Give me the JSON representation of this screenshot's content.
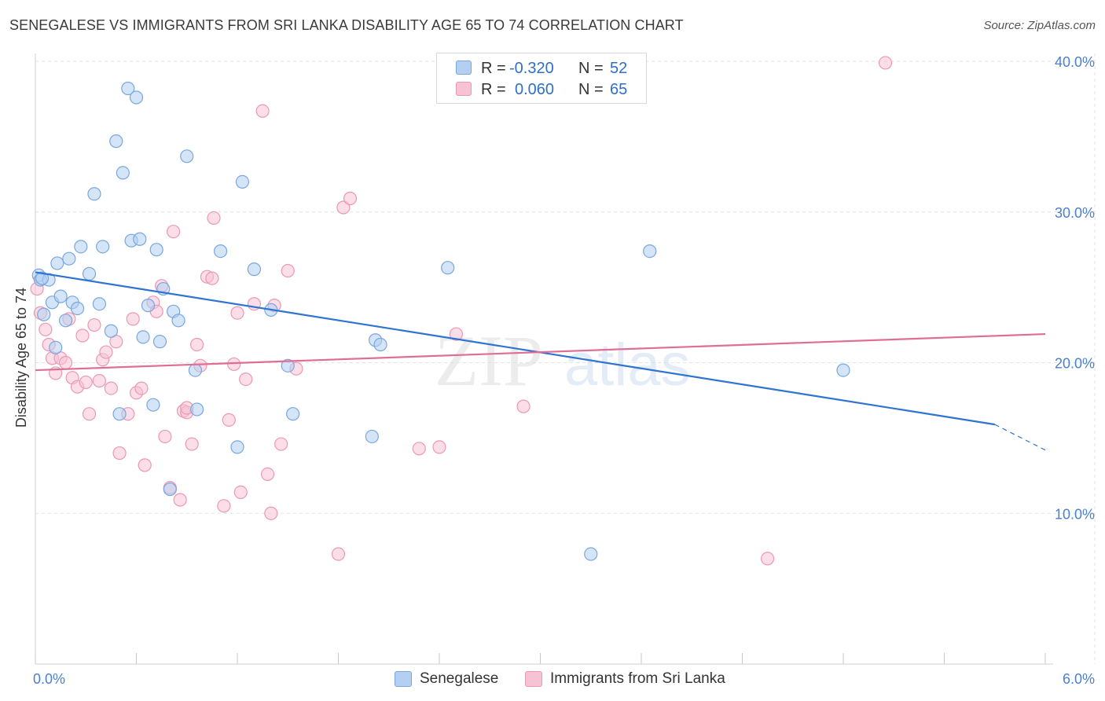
{
  "title": "SENEGALESE VS IMMIGRANTS FROM SRI LANKA DISABILITY AGE 65 TO 74 CORRELATION CHART",
  "source": "Source: ZipAtlas.com",
  "watermark": {
    "zip": "ZIP",
    "atlas": "atlas"
  },
  "legend": {
    "rows": [
      {
        "r_label": "R =",
        "r_value": "-0.320",
        "n_label": "N =",
        "n_value": "52"
      },
      {
        "r_label": "R =",
        "r_value": "0.060",
        "n_label": "N =",
        "n_value": "65"
      }
    ]
  },
  "bottom_legend": [
    "Senegalese",
    "Immigrants from Sri Lanka"
  ],
  "colors": {
    "blue_fill": "#b3cff2",
    "blue_stroke": "#7aa6de",
    "blue_line": "#2e74d0",
    "pink_fill": "#f7c2d3",
    "pink_stroke": "#ec98b4",
    "pink_line": "#e06d96",
    "axis_text": "#4a7fd1",
    "grid": "#e3e3e3"
  },
  "chart_data": {
    "type": "scatter",
    "title": "SENEGALESE VS IMMIGRANTS FROM SRI LANKA DISABILITY AGE 65 TO 74 CORRELATION CHART",
    "xlabel": "",
    "ylabel": "Disability Age 65 to 74",
    "xlim": [
      0,
      6
    ],
    "ylim": [
      0,
      40
    ],
    "x_tick_labels": [
      "0.0%",
      "6.0%"
    ],
    "y_ticks": [
      10,
      20,
      30,
      40
    ],
    "y_tick_labels": [
      "10.0%",
      "20.0%",
      "30.0%",
      "40.0%"
    ],
    "grid": true,
    "legend_position": "top-center",
    "series": [
      {
        "name": "Senegalese",
        "color": "#b3cff2",
        "trend": {
          "x_start": 0,
          "y_start": 26.0,
          "x_end": 5.7,
          "y_end": 15.9,
          "dashed_to_x": 6.0,
          "dashed_to_y": 14.2
        },
        "points": [
          [
            0.02,
            25.8
          ],
          [
            0.03,
            25.5
          ],
          [
            0.05,
            23.2
          ],
          [
            0.08,
            25.5
          ],
          [
            0.1,
            24.0
          ],
          [
            0.12,
            21.0
          ],
          [
            0.13,
            26.6
          ],
          [
            0.15,
            24.4
          ],
          [
            0.18,
            22.8
          ],
          [
            0.2,
            26.9
          ],
          [
            0.22,
            24.0
          ],
          [
            0.25,
            23.6
          ],
          [
            0.27,
            27.7
          ],
          [
            0.32,
            25.9
          ],
          [
            0.35,
            31.2
          ],
          [
            0.38,
            23.9
          ],
          [
            0.4,
            27.7
          ],
          [
            0.45,
            22.1
          ],
          [
            0.48,
            34.7
          ],
          [
            0.5,
            16.6
          ],
          [
            0.52,
            32.6
          ],
          [
            0.55,
            38.2
          ],
          [
            0.57,
            28.1
          ],
          [
            0.6,
            37.6
          ],
          [
            0.62,
            28.2
          ],
          [
            0.64,
            21.7
          ],
          [
            0.67,
            23.8
          ],
          [
            0.7,
            17.2
          ],
          [
            0.72,
            27.5
          ],
          [
            0.74,
            21.4
          ],
          [
            0.76,
            24.9
          ],
          [
            0.8,
            11.6
          ],
          [
            0.82,
            23.4
          ],
          [
            0.85,
            22.8
          ],
          [
            0.9,
            33.7
          ],
          [
            0.95,
            19.5
          ],
          [
            0.96,
            16.9
          ],
          [
            1.1,
            27.4
          ],
          [
            1.2,
            14.4
          ],
          [
            1.23,
            32.0
          ],
          [
            1.3,
            26.2
          ],
          [
            1.4,
            23.5
          ],
          [
            1.5,
            19.8
          ],
          [
            1.53,
            16.6
          ],
          [
            2.0,
            15.1
          ],
          [
            2.02,
            21.5
          ],
          [
            2.05,
            21.2
          ],
          [
            2.45,
            26.3
          ],
          [
            3.3,
            7.3
          ],
          [
            3.65,
            27.4
          ],
          [
            4.8,
            19.5
          ],
          [
            0.04,
            25.6
          ]
        ]
      },
      {
        "name": "Immigrants from Sri Lanka",
        "color": "#f7c2d3",
        "trend": {
          "x_start": 0,
          "y_start": 19.5,
          "x_end": 6.0,
          "y_end": 21.9
        },
        "points": [
          [
            0.01,
            24.9
          ],
          [
            0.06,
            22.2
          ],
          [
            0.08,
            21.2
          ],
          [
            0.1,
            20.3
          ],
          [
            0.12,
            19.3
          ],
          [
            0.15,
            20.3
          ],
          [
            0.18,
            20.0
          ],
          [
            0.2,
            22.9
          ],
          [
            0.22,
            19.0
          ],
          [
            0.25,
            18.4
          ],
          [
            0.28,
            21.8
          ],
          [
            0.3,
            18.7
          ],
          [
            0.32,
            16.6
          ],
          [
            0.35,
            22.5
          ],
          [
            0.38,
            18.8
          ],
          [
            0.4,
            20.2
          ],
          [
            0.42,
            20.7
          ],
          [
            0.45,
            18.3
          ],
          [
            0.48,
            21.4
          ],
          [
            0.5,
            14.0
          ],
          [
            0.55,
            16.6
          ],
          [
            0.58,
            22.9
          ],
          [
            0.6,
            18.0
          ],
          [
            0.63,
            18.3
          ],
          [
            0.65,
            13.2
          ],
          [
            0.7,
            24.0
          ],
          [
            0.72,
            23.4
          ],
          [
            0.75,
            25.1
          ],
          [
            0.77,
            15.1
          ],
          [
            0.8,
            11.7
          ],
          [
            0.82,
            28.7
          ],
          [
            0.86,
            10.9
          ],
          [
            0.88,
            16.8
          ],
          [
            0.9,
            16.7
          ],
          [
            0.93,
            14.6
          ],
          [
            0.96,
            21.2
          ],
          [
            0.98,
            19.8
          ],
          [
            1.02,
            25.7
          ],
          [
            1.05,
            25.6
          ],
          [
            1.06,
            29.6
          ],
          [
            1.12,
            10.5
          ],
          [
            1.15,
            16.2
          ],
          [
            1.18,
            19.9
          ],
          [
            1.2,
            23.3
          ],
          [
            1.22,
            11.4
          ],
          [
            1.25,
            18.9
          ],
          [
            1.3,
            23.9
          ],
          [
            1.35,
            36.7
          ],
          [
            1.38,
            12.6
          ],
          [
            1.4,
            10.0
          ],
          [
            1.42,
            23.8
          ],
          [
            1.46,
            14.6
          ],
          [
            1.5,
            26.1
          ],
          [
            1.55,
            19.6
          ],
          [
            1.8,
            7.3
          ],
          [
            1.83,
            30.3
          ],
          [
            1.87,
            30.9
          ],
          [
            2.28,
            14.3
          ],
          [
            2.4,
            14.4
          ],
          [
            2.5,
            21.9
          ],
          [
            2.9,
            17.1
          ],
          [
            4.35,
            7.0
          ],
          [
            5.05,
            39.9
          ],
          [
            0.03,
            23.3
          ],
          [
            0.9,
            17.0
          ]
        ]
      }
    ]
  }
}
